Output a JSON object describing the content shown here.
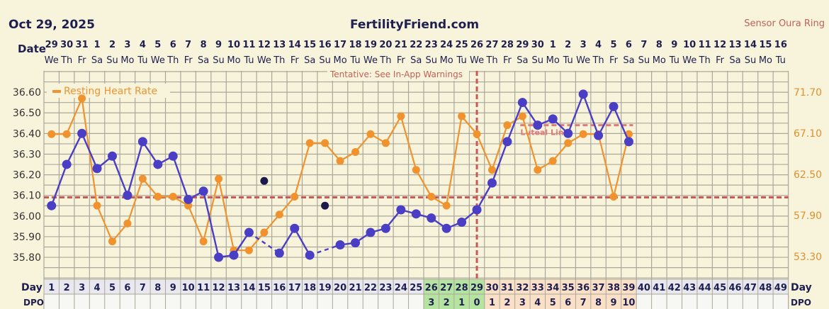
{
  "header": {
    "date": "Oct 29, 2025",
    "site": "FertilityFriend.com",
    "sensor": "Sensor Oura Ring"
  },
  "labels": {
    "date_row": "Date",
    "day_row": "Day",
    "dpo_row": "DPO",
    "tentative": "Tentative: See In-App Warnings",
    "luteal": "Luteal Line"
  },
  "dates": [
    "29",
    "30",
    "31",
    "1",
    "2",
    "3",
    "4",
    "5",
    "6",
    "7",
    "8",
    "9",
    "10",
    "11",
    "12",
    "13",
    "14",
    "15",
    "16",
    "17",
    "18",
    "19",
    "20",
    "21",
    "22",
    "23",
    "24",
    "25",
    "26",
    "27",
    "28",
    "29",
    "30",
    "1",
    "2",
    "3",
    "4",
    "5",
    "6",
    "7",
    "8",
    "9",
    "10",
    "11",
    "12",
    "13",
    "14",
    "15",
    "16"
  ],
  "weekdays": [
    "We",
    "Th",
    "Fr",
    "Sa",
    "Su",
    "Mo",
    "Tu",
    "We",
    "Th",
    "Fr",
    "Sa",
    "Su",
    "Mo",
    "Tu",
    "We",
    "Th",
    "Fr",
    "Sa",
    "Su",
    "Mo",
    "Tu",
    "We",
    "Th",
    "Fr",
    "Sa",
    "Su",
    "Mo",
    "Tu",
    "We",
    "Th",
    "Fr",
    "Sa",
    "Su",
    "Mo",
    "Tu",
    "We",
    "Th",
    "Fr",
    "Sa",
    "Su",
    "Mo",
    "Tu",
    "We",
    "Th",
    "Fr",
    "Sa",
    "Su",
    "Mo",
    "Tu"
  ],
  "dpo": {
    "26": "3",
    "27": "2",
    "28": "1",
    "29": "0",
    "30": "1",
    "31": "2",
    "32": "3",
    "33": "4",
    "34": "5",
    "35": "6",
    "36": "7",
    "37": "8",
    "38": "9",
    "39": "10"
  },
  "colors": {
    "background": "#f8f4dc",
    "grid": "#aaa79a",
    "temperature": "#4a3fc4",
    "excluded": "#1c1a4a",
    "heart_rate": "#f0922e",
    "coverline": "#c85a5a",
    "luteal": "#e07a7a",
    "fertile_cells": "#b5e3a0",
    "luteal_cells": "#fbe0c8"
  },
  "chart_data": {
    "type": "line",
    "x_label": "Day",
    "days": [
      1,
      2,
      3,
      4,
      5,
      6,
      7,
      8,
      9,
      10,
      11,
      12,
      13,
      14,
      15,
      16,
      17,
      18,
      19,
      20,
      21,
      22,
      23,
      24,
      25,
      26,
      27,
      28,
      29,
      30,
      31,
      32,
      33,
      34,
      35,
      36,
      37,
      38,
      39
    ],
    "x_range": [
      1,
      49
    ],
    "left_axis": {
      "ticks": [
        "36.60",
        "36.50",
        "36.40",
        "36.30",
        "36.20",
        "36.10",
        "36.00",
        "35.90",
        "35.80"
      ],
      "range": [
        35.7,
        36.7
      ]
    },
    "right_axis": {
      "ticks": [
        "71.70",
        "67.10",
        "62.50",
        "57.90",
        "53.30"
      ],
      "range": [
        51.0,
        74.0
      ]
    },
    "series": [
      {
        "type": "temperature",
        "axis": "left",
        "values": [
          36.05,
          36.25,
          36.4,
          36.23,
          36.29,
          36.1,
          36.36,
          36.25,
          36.29,
          36.08,
          36.12,
          35.8,
          35.81,
          35.92,
          36.17,
          35.82,
          35.94,
          35.81,
          36.05,
          35.86,
          35.87,
          35.92,
          35.94,
          36.03,
          36.01,
          35.99,
          35.94,
          35.97,
          36.03,
          36.16,
          36.36,
          36.55,
          36.44,
          36.47,
          36.4,
          36.59,
          36.39,
          36.53,
          36.36
        ],
        "excluded_days": [
          15,
          19
        ]
      },
      {
        "name": "Resting Heart Rate",
        "axis": "right",
        "values": [
          67,
          67,
          71,
          59,
          55,
          57,
          62,
          60,
          60,
          59,
          55,
          62,
          54,
          54,
          56,
          58,
          60,
          66,
          66,
          64,
          65,
          67,
          66,
          69,
          63,
          60,
          59,
          69,
          67,
          63,
          68,
          69,
          63,
          64,
          66,
          67,
          67,
          60,
          67
        ]
      }
    ],
    "coverline": 36.09,
    "ovulation_day": 29,
    "luteal_line": {
      "value": 36.44,
      "from_day": 32,
      "to_day": 39
    },
    "legend": "top-left",
    "grid": true
  }
}
